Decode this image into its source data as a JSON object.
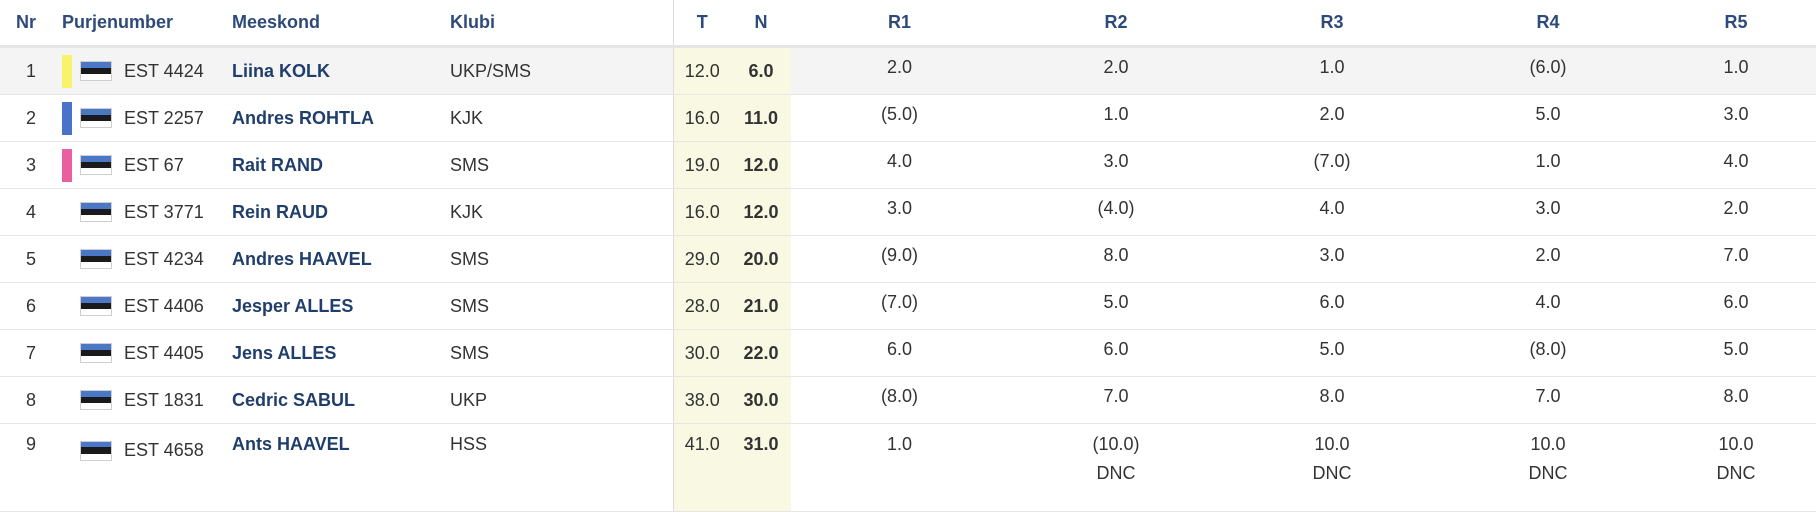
{
  "headers": {
    "nr": "Nr",
    "sail": "Purjenumber",
    "team": "Meeskond",
    "club": "Klubi",
    "t": "T",
    "n": "N",
    "r1": "R1",
    "r2": "R2",
    "r3": "R3",
    "r4": "R4",
    "r5": "R5"
  },
  "colors": {
    "rank1": "#f7f36b",
    "rank2": "#4a72c9",
    "rank3": "#e8609f",
    "header_text": "#2d4a7a",
    "total_col_bg": "#f8f8e3"
  },
  "flag_icon": "estonia-flag-icon",
  "rows": [
    {
      "nr": "1",
      "sail": "EST 4424",
      "team": "Liina KOLK",
      "club": "UKP/SMS",
      "t": "12.0",
      "n": "6.0",
      "r1": "2.0",
      "r2": "2.0",
      "r3": "1.0",
      "r4": "(6.0)",
      "r5": "1.0",
      "r1s": "",
      "r2s": "",
      "r3s": "",
      "r4s": "",
      "r5s": ""
    },
    {
      "nr": "2",
      "sail": "EST 2257",
      "team": "Andres ROHTLA",
      "club": "KJK",
      "t": "16.0",
      "n": "11.0",
      "r1": "(5.0)",
      "r2": "1.0",
      "r3": "2.0",
      "r4": "5.0",
      "r5": "3.0",
      "r1s": "",
      "r2s": "",
      "r3s": "",
      "r4s": "",
      "r5s": ""
    },
    {
      "nr": "3",
      "sail": "EST 67",
      "team": "Rait RAND",
      "club": "SMS",
      "t": "19.0",
      "n": "12.0",
      "r1": "4.0",
      "r2": "3.0",
      "r3": "(7.0)",
      "r4": "1.0",
      "r5": "4.0",
      "r1s": "",
      "r2s": "",
      "r3s": "",
      "r4s": "",
      "r5s": ""
    },
    {
      "nr": "4",
      "sail": "EST 3771",
      "team": "Rein RAUD",
      "club": "KJK",
      "t": "16.0",
      "n": "12.0",
      "r1": "3.0",
      "r2": "(4.0)",
      "r3": "4.0",
      "r4": "3.0",
      "r5": "2.0",
      "r1s": "",
      "r2s": "",
      "r3s": "",
      "r4s": "",
      "r5s": ""
    },
    {
      "nr": "5",
      "sail": "EST 4234",
      "team": "Andres HAAVEL",
      "club": "SMS",
      "t": "29.0",
      "n": "20.0",
      "r1": "(9.0)",
      "r2": "8.0",
      "r3": "3.0",
      "r4": "2.0",
      "r5": "7.0",
      "r1s": "",
      "r2s": "",
      "r3s": "",
      "r4s": "",
      "r5s": ""
    },
    {
      "nr": "6",
      "sail": "EST 4406",
      "team": "Jesper ALLES",
      "club": "SMS",
      "t": "28.0",
      "n": "21.0",
      "r1": "(7.0)",
      "r2": "5.0",
      "r3": "6.0",
      "r4": "4.0",
      "r5": "6.0",
      "r1s": "",
      "r2s": "",
      "r3s": "",
      "r4s": "",
      "r5s": ""
    },
    {
      "nr": "7",
      "sail": "EST 4405",
      "team": "Jens ALLES",
      "club": "SMS",
      "t": "30.0",
      "n": "22.0",
      "r1": "6.0",
      "r2": "6.0",
      "r3": "5.0",
      "r4": "(8.0)",
      "r5": "5.0",
      "r1s": "",
      "r2s": "",
      "r3s": "",
      "r4s": "",
      "r5s": ""
    },
    {
      "nr": "8",
      "sail": "EST 1831",
      "team": "Cedric SABUL",
      "club": "UKP",
      "t": "38.0",
      "n": "30.0",
      "r1": "(8.0)",
      "r2": "7.0",
      "r3": "8.0",
      "r4": "7.0",
      "r5": "8.0",
      "r1s": "",
      "r2s": "",
      "r3s": "",
      "r4s": "",
      "r5s": ""
    },
    {
      "nr": "9",
      "sail": "EST 4658",
      "team": "Ants HAAVEL",
      "club": "HSS",
      "t": "41.0",
      "n": "31.0",
      "r1": "1.0",
      "r2": "(10.0)",
      "r3": "10.0",
      "r4": "10.0",
      "r5": "10.0",
      "r1s": "",
      "r2s": "DNC",
      "r3s": "DNC",
      "r4s": "DNC",
      "r5s": "DNC"
    }
  ]
}
